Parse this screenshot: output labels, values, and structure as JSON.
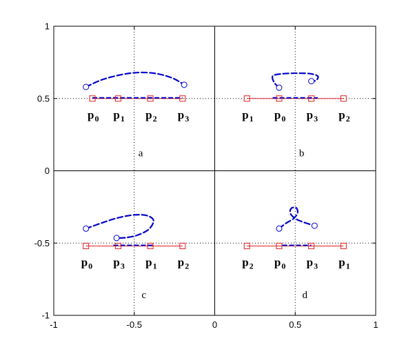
{
  "chart_data": {
    "type": "line",
    "xlim": [
      -1,
      1
    ],
    "ylim": [
      -1,
      1
    ],
    "x_ticks": [
      "-1",
      "-0.5",
      "0",
      "0.5",
      "1"
    ],
    "y_ticks": [
      "-1",
      "-0.5",
      "0",
      "0.5",
      "1"
    ],
    "grid": "dotted at x=-0.5, x=0.5, y=-0.5, y=0.5; solid axes at x=0 and y=0",
    "colors": {
      "control": "#e02020",
      "curve": "#0000cc",
      "frame": "#000000"
    },
    "panels": [
      {
        "label": "a",
        "label_pos": [
          -0.46,
          0.1
        ],
        "control_points": [
          {
            "name": "p0",
            "x": -0.76,
            "y": 0.5
          },
          {
            "name": "p1",
            "x": -0.6,
            "y": 0.5
          },
          {
            "name": "p2",
            "x": -0.4,
            "y": 0.5
          },
          {
            "name": "p3",
            "x": -0.2,
            "y": 0.5
          }
        ],
        "curve_start": {
          "x": -0.8,
          "y": 0.58
        },
        "curve_end": {
          "x": -0.19,
          "y": 0.595
        },
        "curve": [
          [
            -0.8,
            0.58
          ],
          [
            -0.7,
            0.63
          ],
          [
            -0.58,
            0.665
          ],
          [
            -0.47,
            0.68
          ],
          [
            -0.36,
            0.672
          ],
          [
            -0.26,
            0.64
          ],
          [
            -0.19,
            0.595
          ]
        ],
        "base_segment": [
          [
            -0.76,
            0.5
          ],
          [
            -0.2,
            0.5
          ]
        ]
      },
      {
        "label": "b",
        "label_pos": [
          0.54,
          0.1
        ],
        "control_points": [
          {
            "name": "p1",
            "x": 0.2,
            "y": 0.5
          },
          {
            "name": "p0",
            "x": 0.4,
            "y": 0.5
          },
          {
            "name": "p3",
            "x": 0.6,
            "y": 0.5
          },
          {
            "name": "p2",
            "x": 0.8,
            "y": 0.5
          }
        ],
        "curve_start": {
          "x": 0.4,
          "y": 0.575
        },
        "curve_end": {
          "x": 0.6,
          "y": 0.62
        },
        "curve": [
          [
            0.4,
            0.575
          ],
          [
            0.37,
            0.61
          ],
          [
            0.36,
            0.655
          ],
          [
            0.41,
            0.67
          ],
          [
            0.5,
            0.675
          ],
          [
            0.59,
            0.672
          ],
          [
            0.64,
            0.655
          ],
          [
            0.63,
            0.625
          ],
          [
            0.6,
            0.62
          ]
        ],
        "base_segment": [
          [
            0.36,
            0.5
          ],
          [
            0.64,
            0.5
          ]
        ]
      },
      {
        "label": "c",
        "label_pos": [
          -0.44,
          -0.88
        ],
        "control_points": [
          {
            "name": "p0",
            "x": -0.8,
            "y": -0.52
          },
          {
            "name": "p3",
            "x": -0.6,
            "y": -0.52
          },
          {
            "name": "p1",
            "x": -0.4,
            "y": -0.52
          },
          {
            "name": "p2",
            "x": -0.2,
            "y": -0.52
          }
        ],
        "curve_start": {
          "x": -0.8,
          "y": -0.4
        },
        "curve_end": {
          "x": -0.61,
          "y": -0.465
        },
        "curve": [
          [
            -0.8,
            -0.4
          ],
          [
            -0.7,
            -0.36
          ],
          [
            -0.6,
            -0.325
          ],
          [
            -0.5,
            -0.305
          ],
          [
            -0.42,
            -0.31
          ],
          [
            -0.38,
            -0.345
          ],
          [
            -0.41,
            -0.405
          ],
          [
            -0.48,
            -0.445
          ],
          [
            -0.55,
            -0.462
          ],
          [
            -0.61,
            -0.465
          ]
        ],
        "base_segment": [
          [
            -0.63,
            -0.52
          ],
          [
            -0.38,
            -0.52
          ]
        ]
      },
      {
        "label": "d",
        "label_pos": [
          0.56,
          -0.88
        ],
        "control_points": [
          {
            "name": "p2",
            "x": 0.2,
            "y": -0.52
          },
          {
            "name": "p0",
            "x": 0.4,
            "y": -0.52
          },
          {
            "name": "p3",
            "x": 0.6,
            "y": -0.52
          },
          {
            "name": "p1",
            "x": 0.8,
            "y": -0.52
          }
        ],
        "curve_start": {
          "x": 0.4,
          "y": -0.4
        },
        "curve_end": {
          "x": 0.62,
          "y": -0.38
        },
        "curve": [
          [
            0.4,
            -0.4
          ],
          [
            0.44,
            -0.365
          ],
          [
            0.49,
            -0.33
          ],
          [
            0.515,
            -0.29
          ],
          [
            0.505,
            -0.255
          ],
          [
            0.475,
            -0.26
          ],
          [
            0.47,
            -0.295
          ],
          [
            0.5,
            -0.33
          ],
          [
            0.55,
            -0.355
          ],
          [
            0.62,
            -0.38
          ]
        ],
        "base_segment": [
          [
            0.42,
            -0.52
          ],
          [
            0.6,
            -0.52
          ]
        ]
      }
    ]
  }
}
